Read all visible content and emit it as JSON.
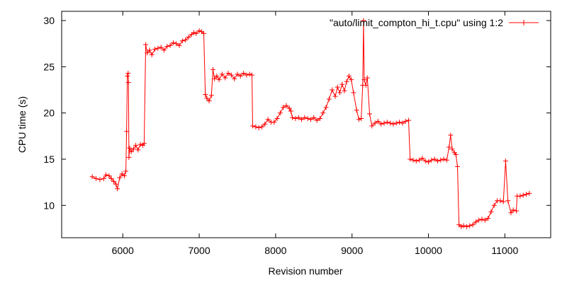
{
  "chart_data": {
    "type": "line",
    "title": "",
    "xlabel": "Revision number",
    "ylabel": "CPU time (s)",
    "xlim": [
      5200,
      11600
    ],
    "ylim": [
      6.5,
      31
    ],
    "xticks": [
      6000,
      7000,
      8000,
      9000,
      10000,
      11000
    ],
    "xtick_labels": [
      "6000",
      "7000",
      "8000",
      "9000",
      "10000",
      "11000"
    ],
    "yticks": [
      10,
      15,
      20,
      25,
      30
    ],
    "ytick_labels": [
      "10",
      "15",
      "20",
      "25",
      "30"
    ],
    "grid": false,
    "legend_position": "top-right",
    "marker": "plus",
    "series_color": "#ff0000",
    "series": [
      {
        "name": "\"auto/limit_compton_hi_t.cpu\" using 1:2",
        "points": [
          [
            5600,
            13.1
          ],
          [
            5650,
            12.9
          ],
          [
            5700,
            12.8
          ],
          [
            5750,
            12.9
          ],
          [
            5780,
            13.3
          ],
          [
            5820,
            13.2
          ],
          [
            5850,
            12.9
          ],
          [
            5880,
            12.6
          ],
          [
            5910,
            12.3
          ],
          [
            5930,
            11.8
          ],
          [
            5960,
            13.0
          ],
          [
            5990,
            13.4
          ],
          [
            6020,
            13.2
          ],
          [
            6040,
            13.7
          ],
          [
            6050,
            18.0
          ],
          [
            6060,
            24.0
          ],
          [
            6070,
            24.3
          ],
          [
            6075,
            23.3
          ],
          [
            6080,
            15.2
          ],
          [
            6090,
            16.2
          ],
          [
            6110,
            15.8
          ],
          [
            6140,
            16.1
          ],
          [
            6170,
            16.5
          ],
          [
            6200,
            16.0
          ],
          [
            6230,
            16.6
          ],
          [
            6260,
            16.5
          ],
          [
            6280,
            16.7
          ],
          [
            6300,
            27.4
          ],
          [
            6320,
            26.5
          ],
          [
            6350,
            26.8
          ],
          [
            6380,
            26.3
          ],
          [
            6420,
            26.9
          ],
          [
            6460,
            27.0
          ],
          [
            6500,
            27.1
          ],
          [
            6540,
            26.8
          ],
          [
            6580,
            27.2
          ],
          [
            6620,
            27.3
          ],
          [
            6660,
            27.6
          ],
          [
            6700,
            27.5
          ],
          [
            6740,
            27.3
          ],
          [
            6780,
            27.8
          ],
          [
            6820,
            27.9
          ],
          [
            6860,
            28.2
          ],
          [
            6900,
            28.5
          ],
          [
            6930,
            28.7
          ],
          [
            6960,
            28.6
          ],
          [
            7000,
            28.9
          ],
          [
            7030,
            28.8
          ],
          [
            7060,
            28.6
          ],
          [
            7080,
            22.0
          ],
          [
            7100,
            21.6
          ],
          [
            7130,
            21.3
          ],
          [
            7160,
            21.9
          ],
          [
            7180,
            24.7
          ],
          [
            7200,
            23.7
          ],
          [
            7230,
            24.0
          ],
          [
            7260,
            23.6
          ],
          [
            7300,
            24.2
          ],
          [
            7340,
            23.8
          ],
          [
            7380,
            24.3
          ],
          [
            7420,
            24.1
          ],
          [
            7460,
            23.7
          ],
          [
            7500,
            24.2
          ],
          [
            7540,
            24.0
          ],
          [
            7580,
            24.3
          ],
          [
            7620,
            24.1
          ],
          [
            7660,
            24.2
          ],
          [
            7690,
            24.1
          ],
          [
            7700,
            18.6
          ],
          [
            7740,
            18.5
          ],
          [
            7780,
            18.4
          ],
          [
            7820,
            18.5
          ],
          [
            7860,
            18.8
          ],
          [
            7900,
            19.3
          ],
          [
            7940,
            19.0
          ],
          [
            7980,
            19.0
          ],
          [
            8020,
            19.4
          ],
          [
            8060,
            20.0
          ],
          [
            8100,
            20.6
          ],
          [
            8140,
            20.8
          ],
          [
            8180,
            20.5
          ],
          [
            8200,
            20.2
          ],
          [
            8220,
            19.5
          ],
          [
            8260,
            19.4
          ],
          [
            8300,
            19.5
          ],
          [
            8340,
            19.3
          ],
          [
            8380,
            19.5
          ],
          [
            8420,
            19.4
          ],
          [
            8460,
            19.3
          ],
          [
            8500,
            19.5
          ],
          [
            8540,
            19.2
          ],
          [
            8580,
            19.4
          ],
          [
            8620,
            20.0
          ],
          [
            8660,
            20.6
          ],
          [
            8700,
            21.5
          ],
          [
            8740,
            22.5
          ],
          [
            8780,
            21.8
          ],
          [
            8810,
            22.8
          ],
          [
            8840,
            22.2
          ],
          [
            8870,
            23.1
          ],
          [
            8900,
            22.4
          ],
          [
            8930,
            23.4
          ],
          [
            8960,
            24.0
          ],
          [
            8990,
            23.6
          ],
          [
            9020,
            22.2
          ],
          [
            9060,
            20.3
          ],
          [
            9090,
            19.3
          ],
          [
            9120,
            19.4
          ],
          [
            9140,
            23.0
          ],
          [
            9150,
            30.0
          ],
          [
            9160,
            23.6
          ],
          [
            9180,
            23.0
          ],
          [
            9200,
            23.8
          ],
          [
            9230,
            19.9
          ],
          [
            9260,
            18.6
          ],
          [
            9300,
            18.9
          ],
          [
            9340,
            19.1
          ],
          [
            9380,
            18.8
          ],
          [
            9420,
            18.9
          ],
          [
            9460,
            19.0
          ],
          [
            9500,
            18.9
          ],
          [
            9540,
            18.8
          ],
          [
            9580,
            18.9
          ],
          [
            9620,
            19.0
          ],
          [
            9660,
            18.9
          ],
          [
            9700,
            19.1
          ],
          [
            9740,
            19.2
          ],
          [
            9760,
            15.0
          ],
          [
            9800,
            14.9
          ],
          [
            9840,
            14.8
          ],
          [
            9880,
            14.9
          ],
          [
            9920,
            15.1
          ],
          [
            9960,
            14.8
          ],
          [
            10000,
            14.7
          ],
          [
            10040,
            14.9
          ],
          [
            10080,
            15.0
          ],
          [
            10120,
            14.8
          ],
          [
            10160,
            14.9
          ],
          [
            10200,
            15.0
          ],
          [
            10240,
            14.9
          ],
          [
            10270,
            16.3
          ],
          [
            10290,
            17.6
          ],
          [
            10310,
            16.1
          ],
          [
            10340,
            15.7
          ],
          [
            10360,
            15.5
          ],
          [
            10380,
            14.2
          ],
          [
            10400,
            7.9
          ],
          [
            10430,
            7.7
          ],
          [
            10460,
            7.8
          ],
          [
            10500,
            7.7
          ],
          [
            10540,
            7.8
          ],
          [
            10580,
            7.9
          ],
          [
            10620,
            8.2
          ],
          [
            10660,
            8.4
          ],
          [
            10700,
            8.5
          ],
          [
            10740,
            8.4
          ],
          [
            10780,
            8.6
          ],
          [
            10820,
            9.3
          ],
          [
            10860,
            10.0
          ],
          [
            10900,
            10.5
          ],
          [
            10940,
            10.5
          ],
          [
            10980,
            10.4
          ],
          [
            11010,
            14.8
          ],
          [
            11040,
            10.5
          ],
          [
            11080,
            9.2
          ],
          [
            11110,
            9.5
          ],
          [
            11150,
            9.4
          ],
          [
            11160,
            11.0
          ],
          [
            11200,
            11.0
          ],
          [
            11240,
            11.1
          ],
          [
            11280,
            11.2
          ],
          [
            11320,
            11.3
          ]
        ]
      }
    ]
  }
}
